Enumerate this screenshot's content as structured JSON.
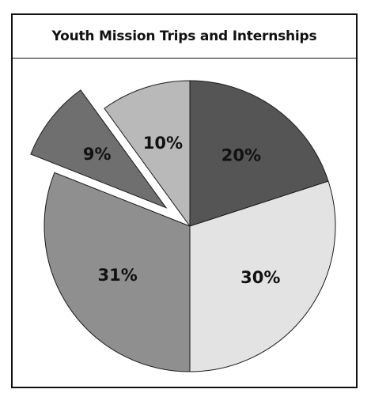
{
  "chart_data": {
    "type": "pie",
    "title": "Youth Mission Trips and Internships",
    "slices": [
      {
        "label": "20%",
        "value": 20,
        "color": "#555555",
        "exploded": false
      },
      {
        "label": "30%",
        "value": 30,
        "color": "#e3e3e3",
        "exploded": false
      },
      {
        "label": "31%",
        "value": 31,
        "color": "#8f8f8f",
        "exploded": true
      },
      {
        "label": "9%",
        "value": 9,
        "color": "#6f6f6f",
        "exploded": true
      },
      {
        "label": "10%",
        "value": 10,
        "color": "#b9b9b9",
        "exploded": false
      }
    ],
    "start_angle": "12 o'clock",
    "direction": "clockwise"
  }
}
